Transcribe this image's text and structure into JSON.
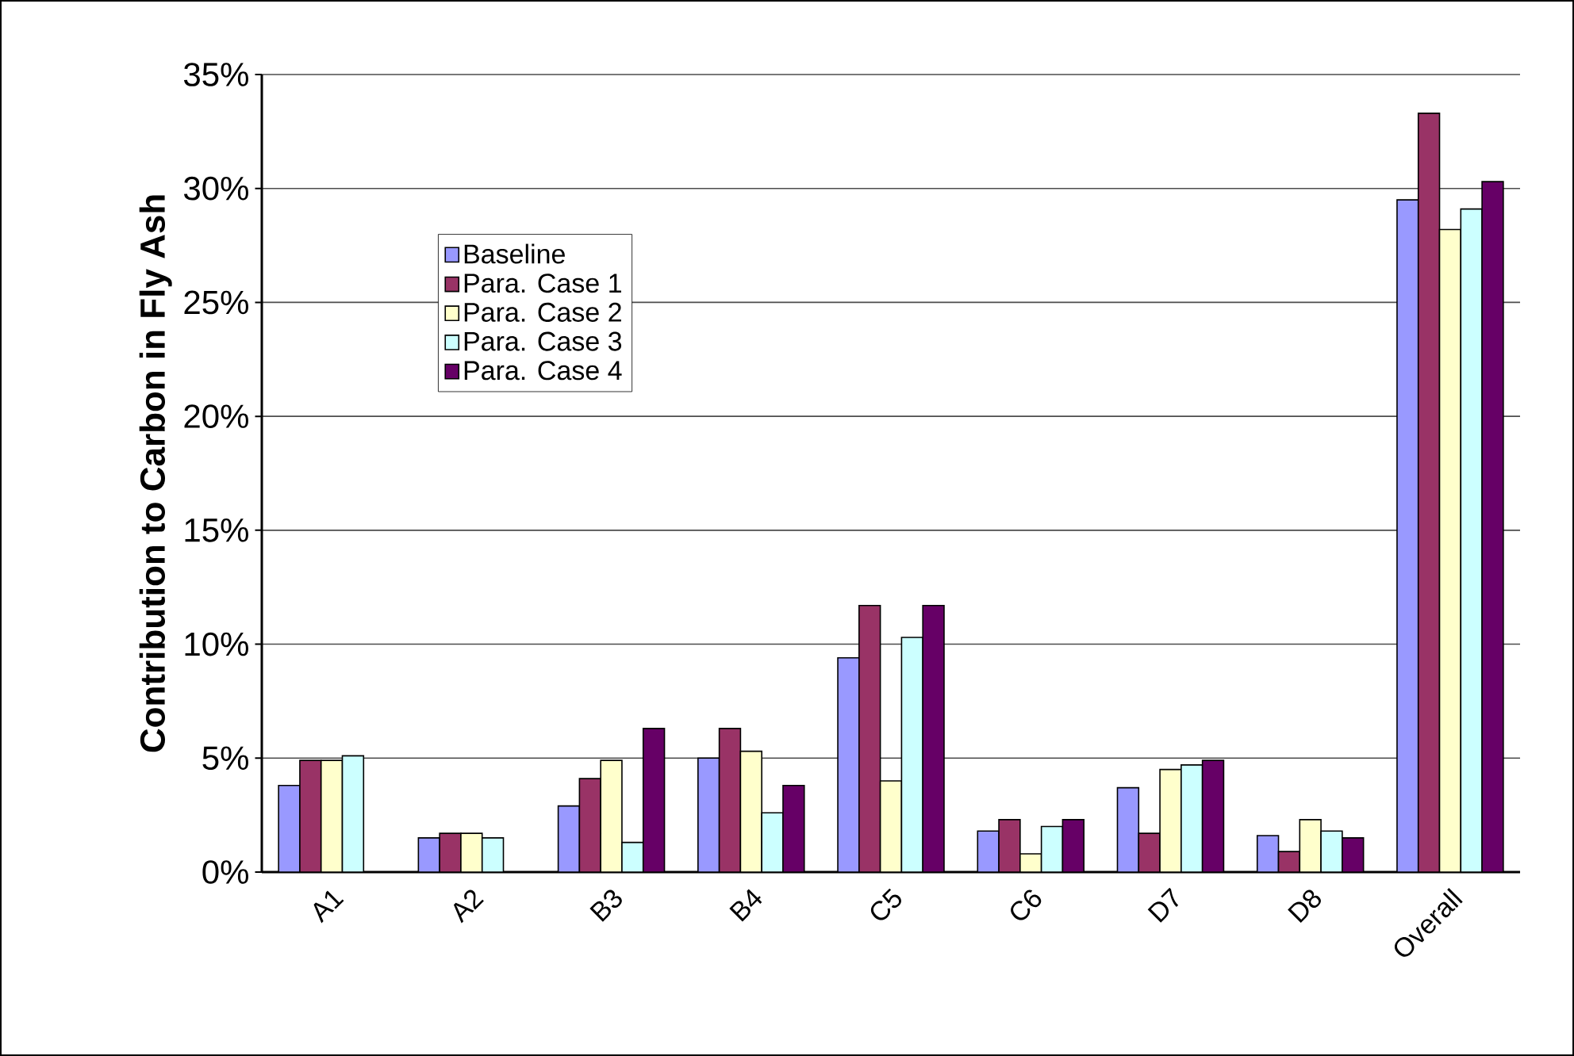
{
  "chart_data": {
    "type": "bar",
    "ylabel": "Contribution to Carbon in Fly Ash",
    "categories": [
      "A1",
      "A2",
      "B3",
      "B4",
      "C5",
      "C6",
      "D7",
      "D8",
      "Overall"
    ],
    "series": [
      {
        "name": "Baseline",
        "color": "#9999ff",
        "values": [
          3.8,
          1.5,
          2.9,
          5.0,
          9.4,
          1.8,
          3.7,
          1.6,
          29.5
        ]
      },
      {
        "name": "Para. Case 1",
        "color": "#993366",
        "values": [
          4.9,
          1.7,
          4.1,
          6.3,
          11.7,
          2.3,
          1.7,
          0.9,
          33.3
        ]
      },
      {
        "name": "Para. Case 2",
        "color": "#ffffcc",
        "values": [
          4.9,
          1.7,
          4.9,
          5.3,
          4.0,
          0.8,
          4.5,
          2.3,
          28.2
        ]
      },
      {
        "name": "Para. Case 3",
        "color": "#ccffff",
        "values": [
          5.1,
          1.5,
          1.3,
          2.6,
          10.3,
          2.0,
          4.7,
          1.8,
          29.1
        ]
      },
      {
        "name": "Para. Case 4",
        "color": "#660066",
        "values": [
          null,
          null,
          6.3,
          3.8,
          11.7,
          2.3,
          4.9,
          1.5,
          30.3
        ]
      }
    ],
    "ylim": [
      0,
      35
    ],
    "yticks": [
      {
        "value": 0,
        "label": "0%"
      },
      {
        "value": 5,
        "label": "5%"
      },
      {
        "value": 10,
        "label": "10%"
      },
      {
        "value": 15,
        "label": "15%"
      },
      {
        "value": 20,
        "label": "20%"
      },
      {
        "value": 25,
        "label": "25%"
      },
      {
        "value": 30,
        "label": "30%"
      },
      {
        "value": 35,
        "label": "35%"
      }
    ],
    "grid": "y",
    "legend": "top left"
  }
}
